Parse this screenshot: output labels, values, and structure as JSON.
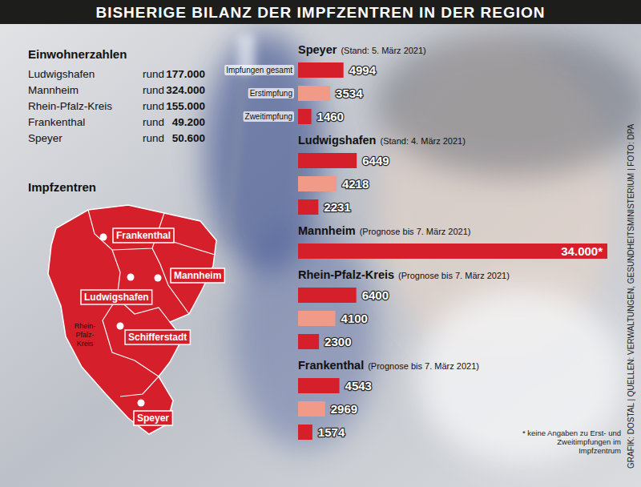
{
  "header": {
    "title": "BISHERIGE BILANZ DER IMPFZENTREN IN DER REGION"
  },
  "population": {
    "title": "Einwohnerzahlen",
    "rows": [
      {
        "name": "Ludwigshafen",
        "prefix": "rund",
        "value": "177.000"
      },
      {
        "name": "Mannheim",
        "prefix": "rund",
        "value": "324.000"
      },
      {
        "name": "Rhein-Pfalz-Kreis",
        "prefix": "rund",
        "value": "155.000"
      },
      {
        "name": "Frankenthal",
        "prefix": "rund",
        "value": "49.200"
      },
      {
        "name": "Speyer",
        "prefix": "rund",
        "value": "50.600"
      }
    ]
  },
  "map": {
    "title": "Impfzentren",
    "region_label": "Rhein-Pfalz-Kreis",
    "centers": [
      "Frankenthal",
      "Mannheim",
      "Ludwigshafen",
      "Schifferstadt",
      "Speyer"
    ]
  },
  "chart_data": {
    "type": "bar",
    "orientation": "horizontal",
    "data_labels": true,
    "tick_labels": false,
    "xlim": [
      0,
      34000
    ],
    "categories": [
      "Impfungen gesamt",
      "Erstimpfung",
      "Zweitimpfung"
    ],
    "colors": [
      "#d51f2b",
      "#f19a88",
      "#d51f2b"
    ],
    "groups": [
      {
        "name": "Speyer",
        "note": "(Stand: 5. März 2021)",
        "values": [
          4994,
          3534,
          1460
        ]
      },
      {
        "name": "Ludwigshafen",
        "note": "(Stand: 4. März 2021)",
        "values": [
          6449,
          4218,
          2231
        ]
      },
      {
        "name": "Mannheim",
        "note": "(Prognose bis 7. März 2021)",
        "values": [
          34000,
          null,
          null
        ],
        "value_labels": [
          "34.000*",
          null,
          null
        ]
      },
      {
        "name": "Rhein-Pfalz-Kreis",
        "note": "(Prognose bis 7. März 2021)",
        "values": [
          6400,
          4100,
          2300
        ]
      },
      {
        "name": "Frankenthal",
        "note": "(Prognose bis 7. März 2021)",
        "values": [
          4543,
          2969,
          1574
        ]
      }
    ],
    "footnote": "* keine Angaben zu Erst- und Zweitimpfungen im Impfzentrum"
  },
  "source": "GRAFIK: DOSTAL | QUELLEN: VERWALTUNGEN, GESUNDHEITSMINISTERIUM | FOTO: DPA"
}
